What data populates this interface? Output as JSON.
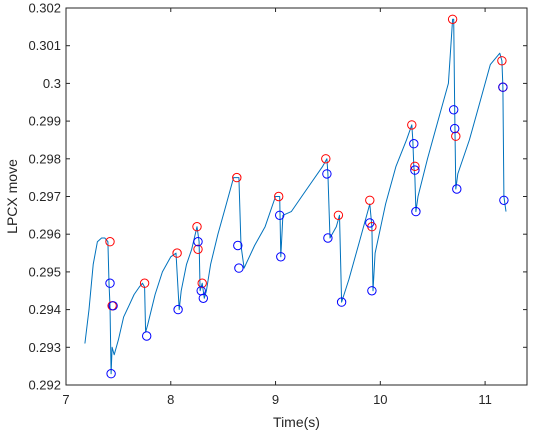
{
  "chart_data": {
    "type": "line",
    "xlabel": "Time(s)",
    "ylabel": "LPCX move",
    "xlim": [
      7,
      11.4
    ],
    "ylim": [
      0.292,
      0.302
    ],
    "grid": false,
    "xticks": [
      7,
      8,
      9,
      10,
      11
    ],
    "xtick_labels": [
      "7",
      "8",
      "9",
      "10",
      "11"
    ],
    "yticks": [
      0.292,
      0.293,
      0.294,
      0.295,
      0.296,
      0.297,
      0.298,
      0.299,
      0.3,
      0.301,
      0.302
    ],
    "ytick_labels": [
      "0.292",
      "0.293",
      "0.294",
      "0.295",
      "0.296",
      "0.297",
      "0.298",
      "0.299",
      "0.3",
      "0.301",
      "0.302"
    ],
    "colors": {
      "line": "#0072BD",
      "red_marker": "#FF0000",
      "blue_marker": "#0000FF",
      "axis": "#262626"
    },
    "series": [
      {
        "kind": "line",
        "x": [
          7.18,
          7.22,
          7.26,
          7.3,
          7.34,
          7.37,
          7.4,
          7.41,
          7.42,
          7.43,
          7.44,
          7.46,
          7.5,
          7.55,
          7.6,
          7.65,
          7.7,
          7.73,
          7.75,
          7.76,
          7.78,
          7.85,
          7.92,
          8.0,
          8.05,
          8.08,
          8.1,
          8.15,
          8.2,
          8.25,
          8.27,
          8.28,
          8.3,
          8.32,
          8.34,
          8.38,
          8.45,
          8.52,
          8.6,
          8.65,
          8.67,
          8.7,
          8.8,
          8.9,
          9.0,
          9.04,
          9.05,
          9.07,
          9.15,
          9.25,
          9.35,
          9.45,
          9.49,
          9.5,
          9.52,
          9.58,
          9.61,
          9.63,
          9.7,
          9.8,
          9.9,
          9.92,
          9.93,
          9.95,
          10.05,
          10.15,
          10.25,
          10.3,
          10.31,
          10.32,
          10.33,
          10.34,
          10.36,
          10.45,
          10.55,
          10.65,
          10.69,
          10.7,
          10.71,
          10.72,
          10.74,
          10.85,
          10.95,
          11.05,
          11.14,
          11.16,
          11.17,
          11.18,
          11.2
        ],
        "y": [
          0.2931,
          0.294,
          0.2952,
          0.2958,
          0.2959,
          0.2959,
          0.2958,
          0.2947,
          0.2941,
          0.2923,
          0.293,
          0.2928,
          0.2932,
          0.2938,
          0.2941,
          0.2944,
          0.2946,
          0.2947,
          0.2946,
          0.2934,
          0.2936,
          0.2944,
          0.295,
          0.2954,
          0.2955,
          0.294,
          0.2945,
          0.2952,
          0.2956,
          0.2962,
          0.2958,
          0.2945,
          0.2947,
          0.2943,
          0.2945,
          0.2952,
          0.296,
          0.2967,
          0.2975,
          0.2975,
          0.2957,
          0.2951,
          0.2957,
          0.2962,
          0.297,
          0.297,
          0.2954,
          0.2965,
          0.2966,
          0.297,
          0.2974,
          0.2978,
          0.298,
          0.2976,
          0.2959,
          0.2962,
          0.2965,
          0.2942,
          0.2948,
          0.2958,
          0.2968,
          0.2962,
          0.2945,
          0.2955,
          0.2968,
          0.2978,
          0.2985,
          0.2989,
          0.2985,
          0.2978,
          0.2975,
          0.2966,
          0.297,
          0.298,
          0.299,
          0.3,
          0.3017,
          0.3017,
          0.2993,
          0.2972,
          0.2976,
          0.2985,
          0.2995,
          0.3005,
          0.3008,
          0.3006,
          0.2999,
          0.297,
          0.2966
        ]
      },
      {
        "kind": "markers",
        "marker": "red-circle",
        "x": [
          7.42,
          7.44,
          7.75,
          8.06,
          8.25,
          8.26,
          8.3,
          8.63,
          9.03,
          9.48,
          9.6,
          9.9,
          9.92,
          10.3,
          10.33,
          10.69,
          10.72,
          11.16,
          11.17
        ],
        "y": [
          0.2958,
          0.2941,
          0.2947,
          0.2955,
          0.2962,
          0.2956,
          0.2947,
          0.2975,
          0.297,
          0.298,
          0.2965,
          0.2969,
          0.2962,
          0.2989,
          0.2978,
          0.3017,
          0.2986,
          0.3006,
          0.2999
        ]
      },
      {
        "kind": "markers",
        "marker": "blue-circle",
        "x": [
          7.42,
          7.43,
          7.45,
          7.77,
          8.07,
          8.26,
          8.29,
          8.31,
          8.64,
          8.65,
          9.04,
          9.05,
          9.49,
          9.5,
          9.63,
          9.9,
          9.92,
          10.32,
          10.33,
          10.34,
          10.7,
          10.71,
          10.73,
          11.17,
          11.18
        ],
        "y": [
          0.2947,
          0.2923,
          0.2941,
          0.2933,
          0.294,
          0.2958,
          0.2945,
          0.2943,
          0.2957,
          0.2951,
          0.2965,
          0.2954,
          0.2976,
          0.2959,
          0.2942,
          0.2963,
          0.2945,
          0.2984,
          0.2977,
          0.2966,
          0.2993,
          0.2988,
          0.2972,
          0.2999,
          0.2969
        ]
      }
    ]
  }
}
